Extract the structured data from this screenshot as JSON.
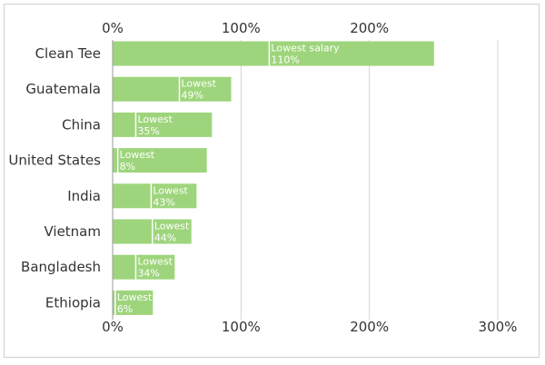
{
  "chart_data": {
    "type": "bar",
    "orientation": "horizontal",
    "title": "",
    "xlabel": "",
    "ylabel": "",
    "xlim": [
      0,
      300
    ],
    "xticks": [
      0,
      100,
      200,
      300
    ],
    "top_tick_labels": [
      "0%",
      "100%",
      "200%"
    ],
    "bottom_tick_labels": [
      "0%",
      "100%",
      "200%",
      "300%"
    ],
    "grid": true,
    "bar_color": "#9ed57c",
    "marker_color": "#ffffff",
    "categories": [
      "Clean Tee",
      "Guatemala",
      "China",
      "United States",
      "India",
      "Vietnam",
      "Bangladesh",
      "Ethiopia"
    ],
    "values": [
      250,
      92,
      77,
      73,
      65,
      61,
      48,
      31
    ],
    "lowest_salary_pct": [
      122,
      52,
      18,
      4,
      30,
      31,
      18,
      2
    ],
    "annotation_lines1": [
      "Lowest salary",
      "Lowest",
      "Lowest",
      "Lowest",
      "Lowest",
      "Lowest",
      "Lowest",
      "Lowest"
    ],
    "annotation_lines2": [
      "110%",
      "49%",
      "35%",
      "8%",
      "43%",
      "44%",
      "34%",
      "6%"
    ]
  }
}
